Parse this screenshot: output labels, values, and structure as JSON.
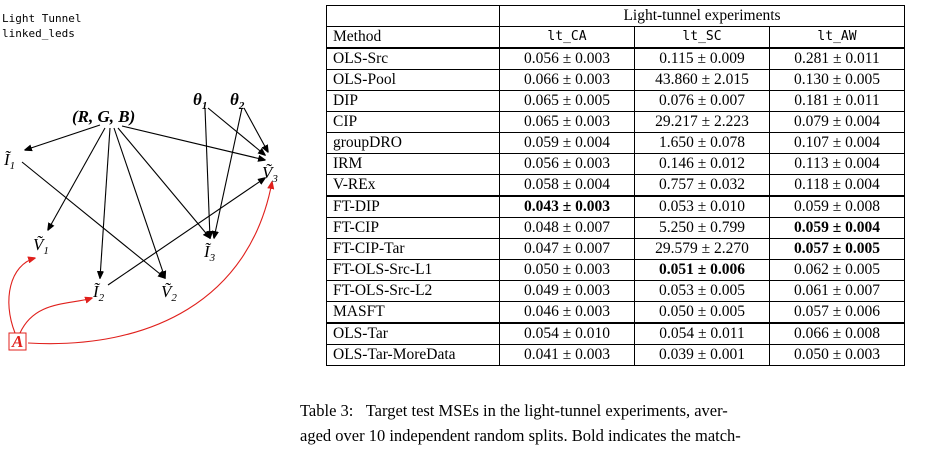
{
  "diagram": {
    "title": "Light Tunnel",
    "subtitle": "linked_leds",
    "nodes": {
      "I1": {
        "symbol": "Ĩ",
        "sub": "1"
      },
      "RGB": {
        "symbol": "(R, G, B)"
      },
      "theta1": {
        "symbol": "θ",
        "sub": "1"
      },
      "theta2": {
        "symbol": "θ",
        "sub": "2"
      },
      "V3": {
        "symbol": "Ṽ",
        "sub": "3"
      },
      "V1": {
        "symbol": "Ṽ",
        "sub": "1"
      },
      "I2": {
        "symbol": "Ĩ",
        "sub": "2"
      },
      "V2": {
        "symbol": "Ṽ",
        "sub": "2"
      },
      "I3": {
        "symbol": "Ĩ",
        "sub": "3"
      },
      "A": {
        "symbol": "A"
      }
    }
  },
  "table": {
    "group_header": "Light-tunnel experiments",
    "columns": [
      "Method",
      "lt_CA",
      "lt_SC",
      "lt_AW"
    ],
    "sections": [
      [
        {
          "method": "OLS-Src",
          "cells": [
            "0.056 ± 0.003",
            "0.115 ± 0.009",
            "0.281 ± 0.011"
          ],
          "bold": [
            false,
            false,
            false
          ]
        },
        {
          "method": "OLS-Pool",
          "cells": [
            "0.066 ± 0.003",
            "43.860 ± 2.015",
            "0.130 ± 0.005"
          ],
          "bold": [
            false,
            false,
            false
          ]
        },
        {
          "method": "DIP",
          "cells": [
            "0.065 ± 0.005",
            "0.076 ± 0.007",
            "0.181 ± 0.011"
          ],
          "bold": [
            false,
            false,
            false
          ]
        },
        {
          "method": "CIP",
          "cells": [
            "0.065 ± 0.003",
            "29.217 ± 2.223",
            "0.079 ± 0.004"
          ],
          "bold": [
            false,
            false,
            false
          ]
        },
        {
          "method": "groupDRO",
          "cells": [
            "0.059 ± 0.004",
            "1.650 ± 0.078",
            "0.107 ± 0.004"
          ],
          "bold": [
            false,
            false,
            false
          ]
        },
        {
          "method": "IRM",
          "cells": [
            "0.056 ± 0.003",
            "0.146 ± 0.012",
            "0.113 ± 0.004"
          ],
          "bold": [
            false,
            false,
            false
          ]
        },
        {
          "method": "V-REx",
          "cells": [
            "0.058 ± 0.004",
            "0.757 ± 0.032",
            "0.118 ± 0.004"
          ],
          "bold": [
            false,
            false,
            false
          ]
        }
      ],
      [
        {
          "method": "FT-DIP",
          "cells": [
            "0.043 ± 0.003",
            "0.053 ± 0.010",
            "0.059 ± 0.008"
          ],
          "bold": [
            true,
            false,
            false
          ]
        },
        {
          "method": "FT-CIP",
          "cells": [
            "0.048 ± 0.007",
            "5.250 ± 0.799",
            "0.059 ± 0.004"
          ],
          "bold": [
            false,
            false,
            true
          ]
        },
        {
          "method": "FT-CIP-Tar",
          "cells": [
            "0.047 ± 0.007",
            "29.579 ± 2.270",
            "0.057 ± 0.005"
          ],
          "bold": [
            false,
            false,
            true
          ]
        },
        {
          "method": "FT-OLS-Src-L1",
          "cells": [
            "0.050 ± 0.003",
            "0.051 ± 0.006",
            "0.062 ± 0.005"
          ],
          "bold": [
            false,
            true,
            false
          ]
        },
        {
          "method": "FT-OLS-Src-L2",
          "cells": [
            "0.049 ± 0.003",
            "0.053 ± 0.005",
            "0.061 ± 0.007"
          ],
          "bold": [
            false,
            false,
            false
          ]
        },
        {
          "method": "MASFT",
          "cells": [
            "0.046 ± 0.003",
            "0.050 ± 0.005",
            "0.057 ± 0.006"
          ],
          "bold": [
            false,
            false,
            false
          ]
        }
      ],
      [
        {
          "method": "OLS-Tar",
          "cells": [
            "0.054 ± 0.010",
            "0.054 ± 0.011",
            "0.066 ± 0.008"
          ],
          "bold": [
            false,
            false,
            false
          ]
        },
        {
          "method": "OLS-Tar-MoreData",
          "cells": [
            "0.041 ± 0.003",
            "0.039 ± 0.001",
            "0.050 ± 0.003"
          ],
          "bold": [
            false,
            false,
            false
          ]
        }
      ]
    ]
  },
  "caption": {
    "label": "Table 3:",
    "lines": [
      "Target test MSEs in the light-tunnel experiments, aver-",
      "aged over 10 independent random splits. Bold indicates the match-"
    ]
  }
}
